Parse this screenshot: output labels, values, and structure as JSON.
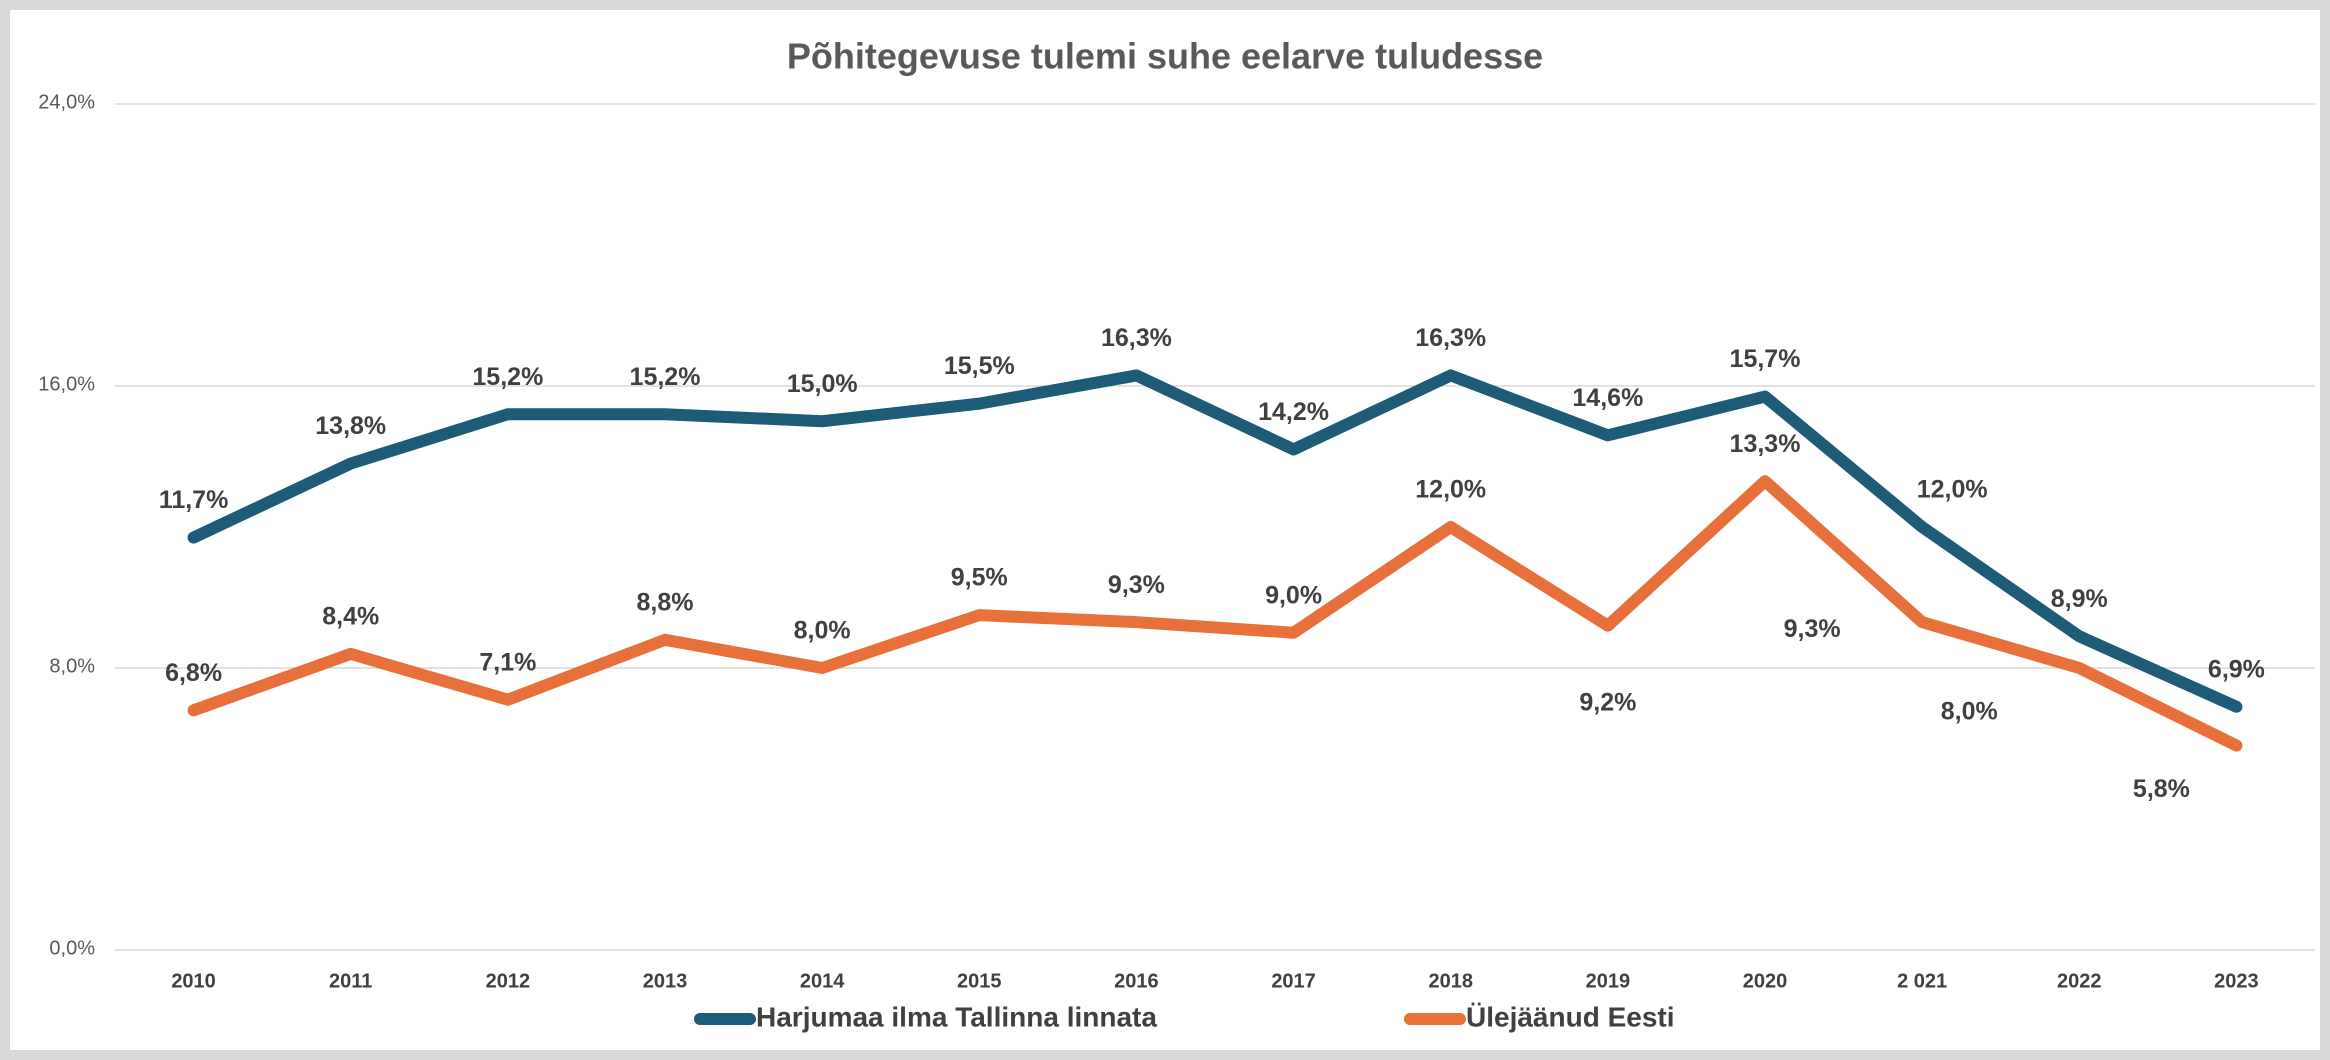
{
  "chart_data": {
    "type": "line",
    "title": "Põhitegevuse tulemi suhe eelarve tuludesse",
    "categories": [
      "2010",
      "2011",
      "2012",
      "2013",
      "2014",
      "2015",
      "2016",
      "2017",
      "2018",
      "2019",
      "2020",
      "2 021",
      "2022",
      "2023"
    ],
    "series": [
      {
        "name": "Harjumaa ilma Tallinna linnata",
        "color": "#1d5b79",
        "values": [
          11.7,
          13.8,
          15.2,
          15.2,
          15.0,
          15.5,
          16.3,
          14.2,
          16.3,
          14.6,
          15.7,
          12.0,
          8.9,
          6.9
        ],
        "value_labels": [
          "11,7%",
          "13,8%",
          "15,2%",
          "15,2%",
          "15,0%",
          "15,5%",
          "16,3%",
          "14,2%",
          "16,3%",
          "14,6%",
          "15,7%",
          "12,0%",
          "8,9%",
          "6,9%"
        ]
      },
      {
        "name": "Ülejäänud Eesti",
        "color": "#e8703a",
        "values": [
          6.8,
          8.4,
          7.1,
          8.8,
          8.0,
          9.5,
          9.3,
          9.0,
          12.0,
          9.2,
          13.3,
          9.3,
          8.0,
          5.8
        ],
        "value_labels": [
          "6,8%",
          "8,4%",
          "7,1%",
          "8,8%",
          "8,0%",
          "9,5%",
          "9,3%",
          "9,0%",
          "12,0%",
          "9,2%",
          "13,3%",
          "9,3%",
          "8,0%",
          "5,8%"
        ]
      }
    ],
    "ylim": [
      0,
      24
    ],
    "yticks": [
      {
        "value": 0,
        "label": "0,0%"
      },
      {
        "value": 8,
        "label": "8,0%"
      },
      {
        "value": 16,
        "label": "16,0%"
      },
      {
        "value": 24,
        "label": "24,0%"
      }
    ],
    "grid": true,
    "legend": "bottom"
  }
}
